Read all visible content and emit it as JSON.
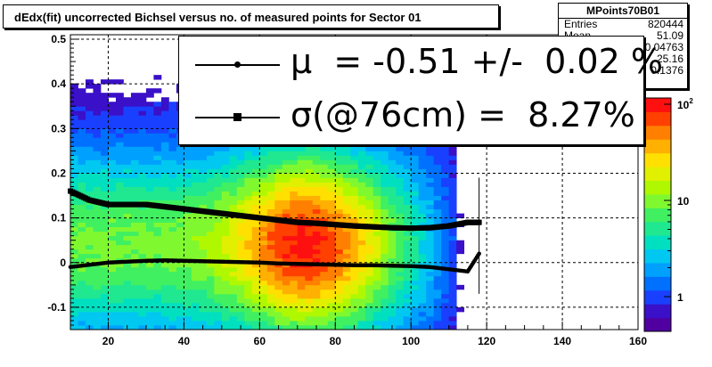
{
  "title": "dEdx(fit) uncorrected Bichsel versus no. of measured points for Sector 01",
  "stats": {
    "name": "MPoints70B01",
    "rows": [
      {
        "key": "Entries",
        "value": "820444"
      },
      {
        "key": "Mean",
        "value": "51.09"
      },
      {
        "key": "Mean y",
        "value": "0.04763"
      },
      {
        "key": "RMS",
        "value": "25.16"
      },
      {
        "key": "RMS y",
        "value": "0.1376"
      }
    ]
  },
  "legend": {
    "mu_text": "μ  = -0.51 +/-  0.02 %",
    "sigma_text": "σ(@76cm) =  8.27%"
  },
  "colors": {
    "frame": "#000000",
    "background": "#ffffff",
    "grid": "#000000"
  },
  "chart_data": {
    "type": "heatmap",
    "title": "dEdx(fit) uncorrected Bichsel versus no. of measured points for Sector 01",
    "xlabel": "",
    "ylabel": "",
    "xlim": [
      10,
      160
    ],
    "ylim": [
      -0.15,
      0.51
    ],
    "x_ticks": [
      20,
      40,
      60,
      80,
      100,
      120,
      140,
      160
    ],
    "y_ticks": [
      -0.1,
      0,
      0.1,
      0.2,
      0.3,
      0.4,
      0.5
    ],
    "grid": true,
    "logz": true,
    "z_ticks": [
      "1",
      "10",
      "10²"
    ],
    "series": [
      {
        "marker": "circle",
        "x": [
          10,
          15,
          20,
          25,
          30,
          35,
          40,
          45,
          50,
          55,
          60,
          65,
          70,
          75,
          80,
          85,
          90,
          95,
          100,
          105,
          110,
          115,
          118
        ],
        "values": [
          -0.01,
          -0.005,
          0.0,
          0.002,
          0.004,
          0.005,
          0.004,
          0.003,
          0.002,
          0.001,
          0.0,
          -0.002,
          -0.003,
          -0.004,
          -0.005,
          -0.006,
          -0.006,
          -0.007,
          -0.008,
          -0.01,
          -0.015,
          -0.02,
          0.02
        ]
      },
      {
        "marker": "square",
        "x": [
          10,
          15,
          20,
          25,
          30,
          35,
          40,
          45,
          50,
          55,
          60,
          65,
          70,
          75,
          80,
          85,
          90,
          95,
          100,
          105,
          110,
          115,
          118
        ],
        "values": [
          0.16,
          0.14,
          0.13,
          0.13,
          0.13,
          0.125,
          0.12,
          0.115,
          0.11,
          0.105,
          0.1,
          0.095,
          0.09,
          0.088,
          0.085,
          0.082,
          0.08,
          0.078,
          0.077,
          0.078,
          0.082,
          0.09,
          0.09
        ]
      }
    ],
    "error_bars": {
      "x": 118,
      "y_low": -0.07,
      "y_high": 0.19
    }
  }
}
